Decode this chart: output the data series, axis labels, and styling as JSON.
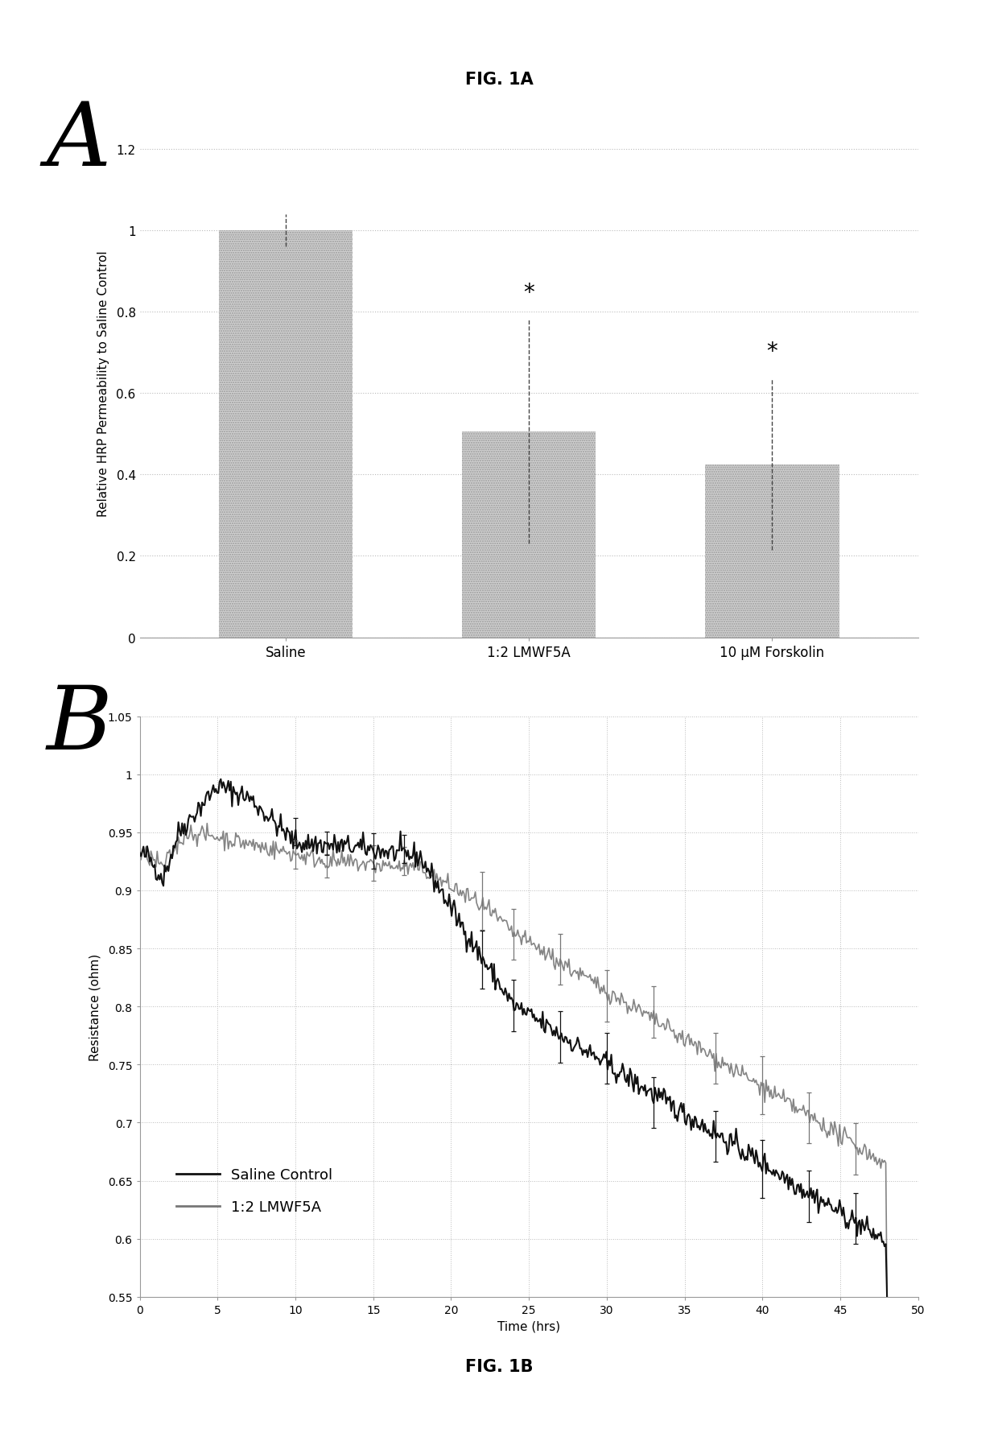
{
  "fig_title_A": "FIG. 1A",
  "fig_title_B": "FIG. 1B",
  "panel_A_label": "A",
  "panel_B_label": "B",
  "bar_categories": [
    "Saline",
    "1:2 LMWF5A",
    "10 μM Forskolin"
  ],
  "bar_values": [
    1.0,
    0.505,
    0.425
  ],
  "bar_errors_upper": [
    0.04,
    0.275,
    0.21
  ],
  "bar_errors_lower": [
    0.04,
    0.275,
    0.21
  ],
  "bar_color": "#d0d0d0",
  "ylabel_A": "Relative HRP Permeability to Saline Control",
  "ylim_A": [
    0,
    1.25
  ],
  "yticks_A": [
    0,
    0.2,
    0.4,
    0.6,
    0.8,
    1.0,
    1.2
  ],
  "ytick_labels_A": [
    "0",
    "0.2",
    "0.4",
    "0.6",
    "0.8",
    "1",
    "1.2"
  ],
  "significance_labels": [
    "",
    "*",
    "*"
  ],
  "line_saline_color": "#111111",
  "line_lmwf_color": "#777777",
  "ylabel_B": "Resistance (ohm)",
  "xlabel_B": "Time (hrs)",
  "ylim_B": [
    0.55,
    1.05
  ],
  "yticks_B": [
    0.55,
    0.6,
    0.65,
    0.7,
    0.75,
    0.8,
    0.85,
    0.9,
    0.95,
    1.0,
    1.05
  ],
  "ytick_labels_B": [
    "0.55",
    "0.6",
    "0.65",
    "0.7",
    "0.75",
    "0.8",
    "0.85",
    "0.9",
    "0.95",
    "1",
    "1.05"
  ],
  "xlim_B": [
    0,
    50
  ],
  "xticks_B": [
    0,
    5,
    10,
    15,
    20,
    25,
    30,
    35,
    40,
    45,
    50
  ],
  "legend_labels": [
    "Saline Control",
    "1:2 LMWF5A"
  ],
  "background_color": "#ffffff",
  "eb_times": [
    10,
    12,
    15,
    17,
    22,
    24,
    27,
    30,
    33,
    37,
    40,
    43,
    46
  ],
  "eb_sal_errs": [
    0.012,
    0.01,
    0.015,
    0.012,
    0.025,
    0.022,
    0.022,
    0.022,
    0.022,
    0.022,
    0.025,
    0.022,
    0.022
  ],
  "eb_lmwf_errs": [
    0.012,
    0.01,
    0.015,
    0.012,
    0.025,
    0.022,
    0.022,
    0.022,
    0.022,
    0.022,
    0.025,
    0.022,
    0.022
  ]
}
